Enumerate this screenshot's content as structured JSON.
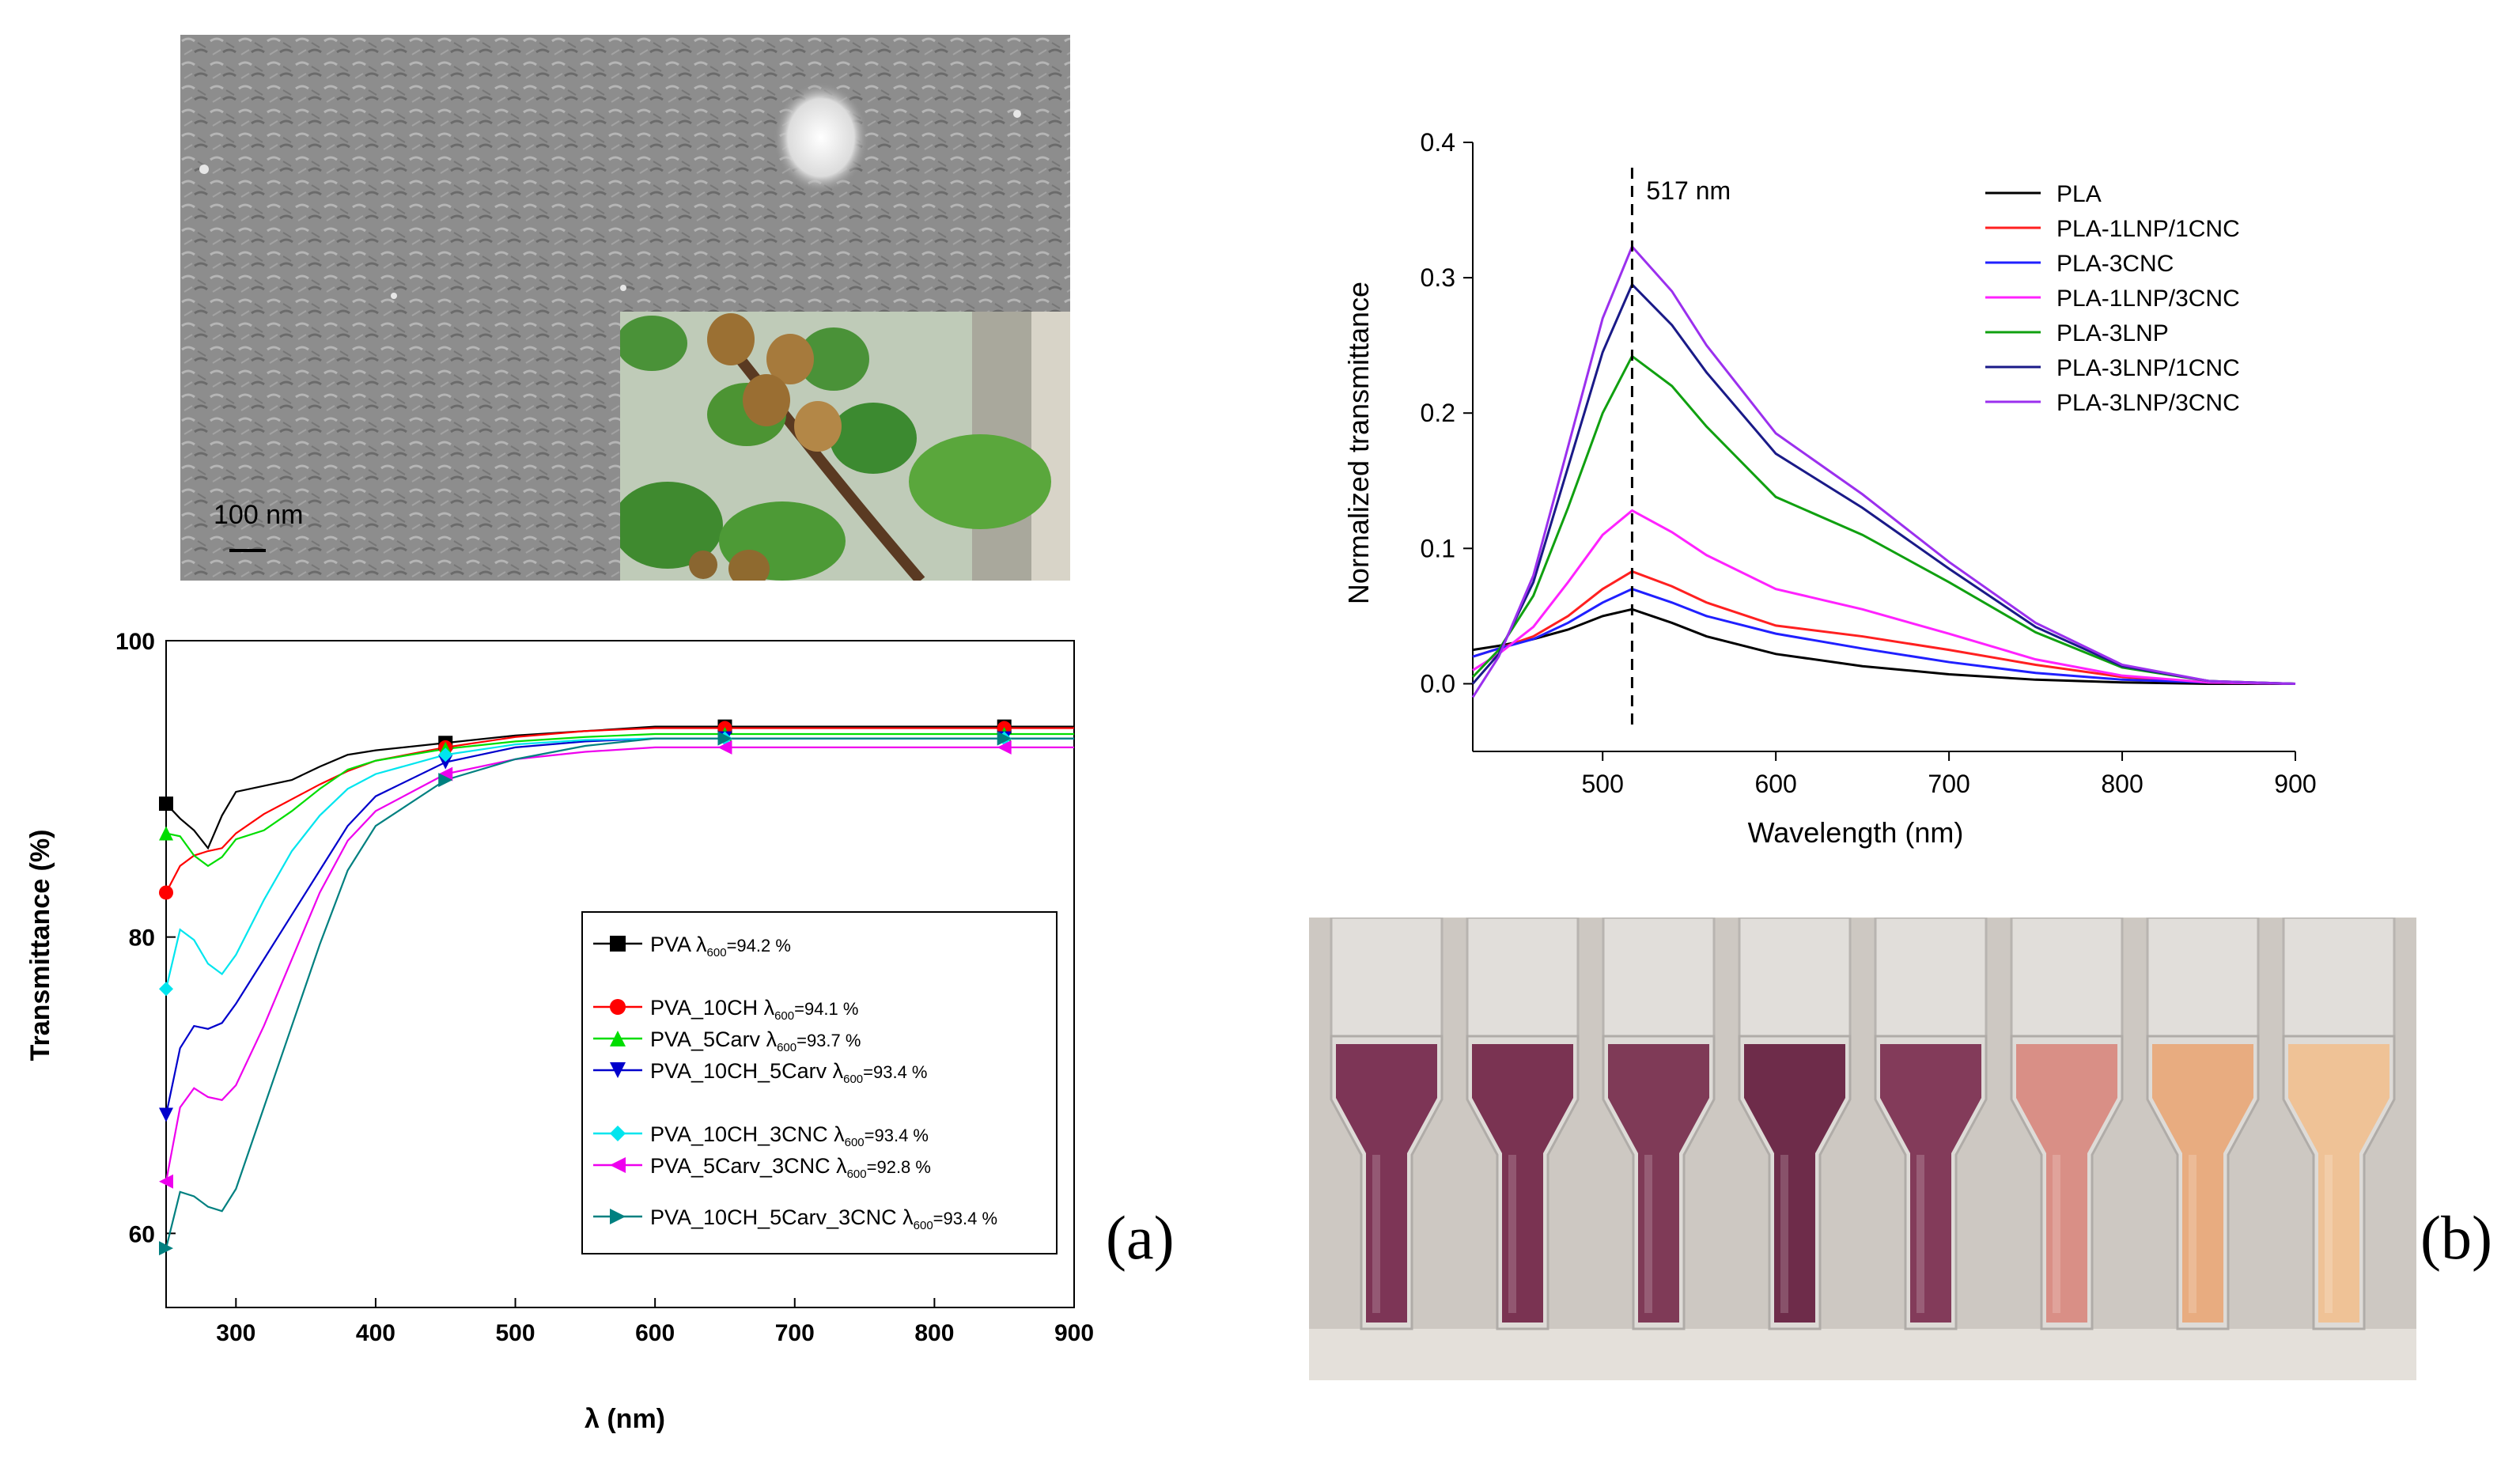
{
  "figure": {
    "panel_a_label": "(a)",
    "panel_b_label": "(b)"
  },
  "sem_image": {
    "scale_label": "100 nm"
  },
  "chart_data": [
    {
      "id": "chart_a",
      "type": "line",
      "title": "",
      "xlabel": "λ (nm)",
      "ylabel": "Transmittance (%)",
      "xlim": [
        250,
        900
      ],
      "ylim": [
        55,
        100
      ],
      "xticks": [
        300,
        400,
        500,
        600,
        700,
        800,
        900
      ],
      "yticks": [
        60,
        80,
        100
      ],
      "grid": false,
      "legend_position": "center-right",
      "series": [
        {
          "name": "PVA",
          "legend_text": "PVA λ600=94.2 %",
          "value_text": "=94.2 %",
          "color": "#000000",
          "marker": "square",
          "x": [
            250,
            260,
            270,
            280,
            290,
            300,
            320,
            340,
            360,
            380,
            400,
            450,
            500,
            550,
            600,
            650,
            700,
            800,
            900
          ],
          "y": [
            89.0,
            88.0,
            87.2,
            86.0,
            88.2,
            89.8,
            90.2,
            90.6,
            91.5,
            92.3,
            92.6,
            93.1,
            93.6,
            93.9,
            94.2,
            94.2,
            94.2,
            94.2,
            94.2
          ]
        },
        {
          "name": "PVA_10CH",
          "legend_text": "PVA_10CH λ600=94.1 %",
          "value_text": "=94.1 %",
          "color": "#ff0000",
          "marker": "circle",
          "x": [
            250,
            260,
            270,
            280,
            290,
            300,
            320,
            340,
            360,
            380,
            400,
            450,
            500,
            550,
            600,
            650,
            700,
            800,
            900
          ],
          "y": [
            83.0,
            84.8,
            85.5,
            85.8,
            86.0,
            87.0,
            88.3,
            89.3,
            90.3,
            91.2,
            91.9,
            92.8,
            93.5,
            93.9,
            94.1,
            94.1,
            94.1,
            94.1,
            94.1
          ]
        },
        {
          "name": "PVA_5Carv",
          "legend_text": "PVA_5Carv λ600=93.7 %",
          "value_text": "=93.7 %",
          "color": "#00dd00",
          "marker": "triangle-up",
          "x": [
            250,
            260,
            270,
            280,
            290,
            300,
            320,
            340,
            360,
            380,
            400,
            450,
            500,
            550,
            600,
            650,
            700,
            800,
            900
          ],
          "y": [
            87.0,
            86.8,
            85.5,
            84.8,
            85.4,
            86.6,
            87.2,
            88.5,
            90.0,
            91.3,
            91.9,
            92.7,
            93.2,
            93.5,
            93.7,
            93.7,
            93.7,
            93.7,
            93.7
          ]
        },
        {
          "name": "PVA_10CH_5Carv",
          "legend_text": "PVA_10CH_5Carv λ600=93.4 %",
          "value_text": "=93.4 %",
          "color": "#0000cc",
          "marker": "triangle-down",
          "x": [
            250,
            260,
            270,
            280,
            290,
            300,
            320,
            340,
            360,
            380,
            400,
            450,
            500,
            550,
            600,
            650,
            700,
            800,
            900
          ],
          "y": [
            68.0,
            72.5,
            74.0,
            73.8,
            74.2,
            75.5,
            78.5,
            81.5,
            84.5,
            87.5,
            89.5,
            91.8,
            92.8,
            93.2,
            93.4,
            93.4,
            93.4,
            93.4,
            93.4
          ]
        },
        {
          "name": "PVA_10CH_3CNC",
          "legend_text": "PVA_10CH_3CNC λ600=93.4 %",
          "value_text": "=93.4 %",
          "color": "#00e5ee",
          "marker": "diamond",
          "x": [
            250,
            260,
            270,
            280,
            290,
            300,
            320,
            340,
            360,
            380,
            400,
            450,
            500,
            550,
            600,
            650,
            700,
            800,
            900
          ],
          "y": [
            76.5,
            80.5,
            79.8,
            78.2,
            77.5,
            78.8,
            82.5,
            85.8,
            88.2,
            90.0,
            91.0,
            92.3,
            93.0,
            93.3,
            93.4,
            93.4,
            93.4,
            93.4,
            93.4
          ]
        },
        {
          "name": "PVA_5Carv_3CNC",
          "legend_text": "PVA_5Carv_3CNC λ600=92.8 %",
          "value_text": "=92.8 %",
          "color": "#ee00ee",
          "marker": "triangle-left",
          "x": [
            250,
            260,
            270,
            280,
            290,
            300,
            320,
            340,
            360,
            380,
            400,
            450,
            500,
            550,
            600,
            650,
            700,
            800,
            900
          ],
          "y": [
            63.5,
            68.5,
            69.8,
            69.2,
            69.0,
            70.0,
            74.0,
            78.5,
            83.0,
            86.5,
            88.5,
            91.0,
            92.0,
            92.5,
            92.8,
            92.8,
            92.8,
            92.8,
            92.8
          ]
        },
        {
          "name": "PVA_10CH_5Carv_3CNC",
          "legend_text": "PVA_10CH_5Carv_3CNC λ600=93.4 %",
          "value_text": "=93.4 %",
          "color": "#008080",
          "marker": "triangle-right",
          "x": [
            250,
            260,
            270,
            280,
            290,
            300,
            320,
            340,
            360,
            380,
            400,
            450,
            500,
            550,
            600,
            650,
            700,
            800,
            900
          ],
          "y": [
            59.0,
            62.8,
            62.5,
            61.8,
            61.5,
            63.0,
            68.5,
            74.0,
            79.5,
            84.5,
            87.5,
            90.6,
            92.0,
            92.9,
            93.4,
            93.4,
            93.4,
            93.4,
            93.4
          ]
        }
      ],
      "marker_x": [
        250,
        450,
        650,
        850
      ],
      "legend_lambda": "λ",
      "legend_sub": "600"
    },
    {
      "id": "chart_b",
      "type": "line",
      "title": "",
      "xlabel": "Wavelength (nm)",
      "ylabel": "Normalized transmittance",
      "xlim": [
        425,
        900
      ],
      "ylim": [
        -0.05,
        0.4
      ],
      "xticks": [
        500,
        600,
        700,
        800,
        900
      ],
      "yticks": [
        0.0,
        0.1,
        0.2,
        0.3,
        0.4
      ],
      "ytick_labels": [
        "0.0",
        "0.1",
        "0.2",
        "0.3",
        "0.4"
      ],
      "grid": false,
      "legend_position": "top-right",
      "annotation": {
        "text": "517 nm",
        "x": 517
      },
      "series": [
        {
          "name": "PLA",
          "color": "#000000",
          "x": [
            425,
            440,
            460,
            480,
            500,
            517,
            540,
            560,
            600,
            650,
            700,
            750,
            800,
            850,
            900
          ],
          "y": [
            0.025,
            0.028,
            0.033,
            0.04,
            0.05,
            0.055,
            0.045,
            0.035,
            0.022,
            0.013,
            0.007,
            0.003,
            0.001,
            0.0,
            0.0
          ]
        },
        {
          "name": "PLA-1LNP/1CNC",
          "color": "#ff2020",
          "x": [
            425,
            440,
            460,
            480,
            500,
            517,
            540,
            560,
            600,
            650,
            700,
            750,
            800,
            850,
            900
          ],
          "y": [
            0.02,
            0.026,
            0.035,
            0.05,
            0.07,
            0.083,
            0.072,
            0.06,
            0.043,
            0.035,
            0.025,
            0.014,
            0.005,
            0.001,
            0.0
          ]
        },
        {
          "name": "PLA-3CNC",
          "color": "#2020ff",
          "x": [
            425,
            440,
            460,
            480,
            500,
            517,
            540,
            560,
            600,
            650,
            700,
            750,
            800,
            850,
            900
          ],
          "y": [
            0.02,
            0.026,
            0.033,
            0.045,
            0.06,
            0.07,
            0.06,
            0.05,
            0.037,
            0.026,
            0.016,
            0.008,
            0.003,
            0.001,
            0.0
          ]
        },
        {
          "name": "PLA-1LNP/3CNC",
          "color": "#ff22ff",
          "x": [
            425,
            440,
            460,
            480,
            500,
            517,
            540,
            560,
            600,
            650,
            700,
            750,
            800,
            850,
            900
          ],
          "y": [
            0.01,
            0.022,
            0.042,
            0.075,
            0.11,
            0.128,
            0.112,
            0.095,
            0.07,
            0.055,
            0.037,
            0.018,
            0.006,
            0.001,
            0.0
          ]
        },
        {
          "name": "PLA-3LNP",
          "color": "#10a010",
          "x": [
            425,
            440,
            460,
            480,
            500,
            517,
            540,
            560,
            600,
            650,
            700,
            750,
            800,
            850,
            900
          ],
          "y": [
            0.005,
            0.025,
            0.065,
            0.13,
            0.2,
            0.242,
            0.22,
            0.19,
            0.138,
            0.11,
            0.075,
            0.038,
            0.012,
            0.002,
            0.0
          ]
        },
        {
          "name": "PLA-3LNP/1CNC",
          "color": "#1a1a88",
          "x": [
            425,
            440,
            460,
            480,
            500,
            517,
            540,
            560,
            600,
            650,
            700,
            750,
            800,
            850,
            900
          ],
          "y": [
            0.0,
            0.022,
            0.075,
            0.16,
            0.245,
            0.295,
            0.265,
            0.23,
            0.17,
            0.13,
            0.085,
            0.042,
            0.013,
            0.002,
            0.0
          ]
        },
        {
          "name": "PLA-3LNP/3CNC",
          "color": "#9b30ee",
          "x": [
            425,
            440,
            460,
            480,
            500,
            517,
            540,
            560,
            600,
            650,
            700,
            750,
            800,
            850,
            900
          ],
          "y": [
            -0.01,
            0.02,
            0.08,
            0.175,
            0.27,
            0.323,
            0.29,
            0.25,
            0.185,
            0.14,
            0.09,
            0.045,
            0.014,
            0.002,
            0.0
          ]
        }
      ]
    }
  ]
}
